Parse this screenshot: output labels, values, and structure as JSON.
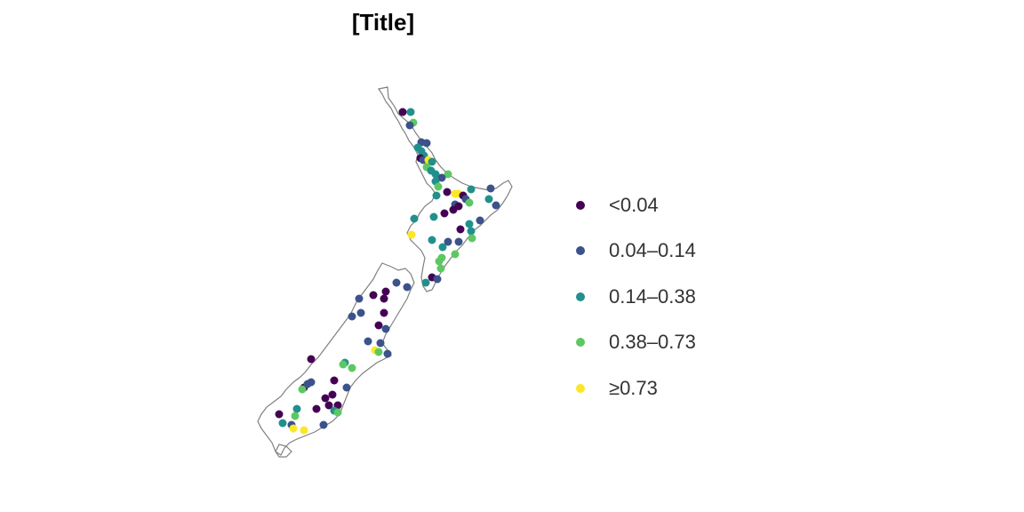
{
  "title": "[Title]",
  "legend": {
    "items": [
      {
        "label": "<0.04",
        "color": "#440154"
      },
      {
        "label": "0.04–0.14",
        "color": "#3b528b"
      },
      {
        "label": "0.14–0.38",
        "color": "#21908c"
      },
      {
        "label": "0.38–0.73",
        "color": "#5dc863"
      },
      {
        "label": "≥0.73",
        "color": "#fde725"
      }
    ]
  },
  "map": {
    "region": "New Zealand",
    "outline_color": "#808080",
    "point_class_count": 5
  }
}
